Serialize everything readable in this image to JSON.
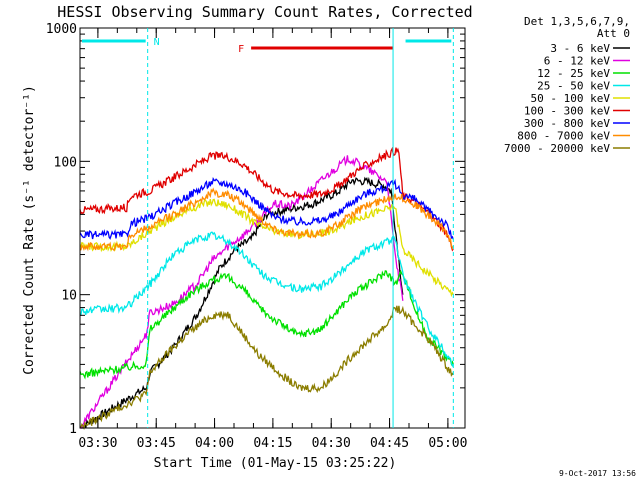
{
  "chart_data": {
    "type": "line",
    "title": "HESSI Observing Summary Count Rates, Corrected",
    "xlabel": "Start Time (01-May-15 03:25:22)",
    "ylabel": "Corrected Count Rate (s⁻¹ detector⁻¹)",
    "yscale": "log",
    "ylim": [
      1,
      1000
    ],
    "xlim_minutes": [
      0,
      99
    ],
    "yticks": [
      {
        "value": 1,
        "label": "1"
      },
      {
        "value": 10,
        "label": "10"
      },
      {
        "value": 100,
        "label": "100"
      },
      {
        "value": 1000,
        "label": "1000"
      }
    ],
    "xticks": [
      {
        "minute": 4.6,
        "label": "03:30"
      },
      {
        "minute": 19.6,
        "label": "03:45"
      },
      {
        "minute": 34.6,
        "label": "04:00"
      },
      {
        "minute": 49.6,
        "label": "04:15"
      },
      {
        "minute": 64.6,
        "label": "04:30"
      },
      {
        "minute": 79.6,
        "label": "04:45"
      },
      {
        "minute": 94.6,
        "label": "05:00"
      }
    ],
    "legend_header": [
      "Det 1,3,5,6,7,9,",
      "Att 0"
    ],
    "legend_position": "top-right, outside plot",
    "series": [
      {
        "name": "3 - 6 keV",
        "color": "#000000",
        "points": [
          [
            0,
            1.0
          ],
          [
            17,
            2.0
          ],
          [
            18,
            2.6
          ],
          [
            24,
            4.0
          ],
          [
            30,
            7.0
          ],
          [
            36,
            16.0
          ],
          [
            40,
            22.0
          ],
          [
            44,
            26.0
          ],
          [
            48,
            40.0
          ],
          [
            54,
            44.0
          ],
          [
            60,
            48.0
          ],
          [
            66,
            58.0
          ],
          [
            70,
            72.0
          ],
          [
            74,
            70.0
          ],
          [
            78,
            66.0
          ],
          [
            80,
            60.0
          ],
          [
            83,
            10.0
          ]
        ]
      },
      {
        "name": "6 - 12 keV",
        "color": "#e000e0",
        "points": [
          [
            0,
            1.0
          ],
          [
            17,
            5.0
          ],
          [
            18,
            7.3
          ],
          [
            24,
            8.5
          ],
          [
            30,
            12.0
          ],
          [
            34,
            18.0
          ],
          [
            38,
            23.0
          ],
          [
            42,
            28.0
          ],
          [
            46,
            36.0
          ],
          [
            50,
            48.0
          ],
          [
            54,
            46.0
          ],
          [
            58,
            56.0
          ],
          [
            62,
            72.0
          ],
          [
            66,
            90.0
          ],
          [
            69,
            105.0
          ],
          [
            72,
            95.0
          ],
          [
            76,
            80.0
          ],
          [
            79,
            70.0
          ],
          [
            81,
            20.0
          ],
          [
            83,
            9.0
          ]
        ]
      },
      {
        "name": "12 - 25 keV",
        "color": "#00e000",
        "points": [
          [
            0,
            2.5
          ],
          [
            17,
            3.0
          ],
          [
            18,
            5.5
          ],
          [
            22,
            7.0
          ],
          [
            28,
            10.0
          ],
          [
            34,
            13.0
          ],
          [
            38,
            13.5
          ],
          [
            42,
            11.0
          ],
          [
            46,
            8.0
          ],
          [
            50,
            6.5
          ],
          [
            56,
            5.0
          ],
          [
            62,
            5.5
          ],
          [
            66,
            7.5
          ],
          [
            70,
            10.0
          ],
          [
            75,
            12.5
          ],
          [
            79,
            15.0
          ],
          [
            81,
            12.0
          ],
          [
            83,
            15.0
          ],
          [
            86,
            8.0
          ],
          [
            89,
            5.0
          ],
          [
            92,
            4.0
          ],
          [
            96,
            3.0
          ]
        ]
      },
      {
        "name": "25 - 50 keV",
        "color": "#00e8e8",
        "points": [
          [
            0,
            7.5
          ],
          [
            12,
            8.0
          ],
          [
            18,
            12.0
          ],
          [
            24,
            20.0
          ],
          [
            30,
            26.0
          ],
          [
            34,
            28.0
          ],
          [
            38,
            25.0
          ],
          [
            42,
            20.0
          ],
          [
            46,
            15.0
          ],
          [
            50,
            12.5
          ],
          [
            56,
            11.0
          ],
          [
            62,
            11.5
          ],
          [
            66,
            14.0
          ],
          [
            70,
            18.0
          ],
          [
            74,
            22.0
          ],
          [
            79,
            25.0
          ],
          [
            81,
            26.0
          ],
          [
            83,
            14.0
          ],
          [
            86,
            9.0
          ],
          [
            89,
            6.0
          ],
          [
            92,
            4.5
          ],
          [
            96,
            3.0
          ]
        ]
      },
      {
        "name": "50 - 100 keV",
        "color": "#e0e000",
        "points": [
          [
            0,
            23.0
          ],
          [
            12,
            23.0
          ],
          [
            18,
            30.0
          ],
          [
            24,
            38.0
          ],
          [
            30,
            46.0
          ],
          [
            34,
            50.0
          ],
          [
            38,
            47.0
          ],
          [
            42,
            40.0
          ],
          [
            46,
            33.0
          ],
          [
            50,
            30.0
          ],
          [
            56,
            28.0
          ],
          [
            62,
            29.0
          ],
          [
            66,
            31.0
          ],
          [
            70,
            36.0
          ],
          [
            74,
            40.0
          ],
          [
            79,
            44.0
          ],
          [
            81,
            46.0
          ],
          [
            83,
            22.0
          ],
          [
            86,
            18.0
          ],
          [
            90,
            14.0
          ],
          [
            96,
            10.0
          ]
        ]
      },
      {
        "name": "100 - 300 keV",
        "color": "#e00000",
        "points": [
          [
            0,
            43.0
          ],
          [
            12,
            45.0
          ],
          [
            13,
            55.0
          ],
          [
            18,
            60.0
          ],
          [
            24,
            75.0
          ],
          [
            30,
            95.0
          ],
          [
            34,
            110.0
          ],
          [
            38,
            108.0
          ],
          [
            42,
            95.0
          ],
          [
            46,
            75.0
          ],
          [
            50,
            60.0
          ],
          [
            56,
            55.0
          ],
          [
            62,
            57.0
          ],
          [
            66,
            64.0
          ],
          [
            70,
            80.0
          ],
          [
            74,
            95.0
          ],
          [
            79,
            112.0
          ],
          [
            81,
            120.0
          ],
          [
            82,
            118.0
          ],
          [
            83,
            55.0
          ],
          [
            86,
            50.0
          ],
          [
            90,
            40.0
          ],
          [
            94,
            30.0
          ],
          [
            96,
            22.0
          ]
        ]
      },
      {
        "name": "300 - 800 keV",
        "color": "#0000ff",
        "points": [
          [
            0,
            28.0
          ],
          [
            12,
            28.0
          ],
          [
            13,
            34.0
          ],
          [
            18,
            38.0
          ],
          [
            24,
            48.0
          ],
          [
            30,
            60.0
          ],
          [
            34,
            70.0
          ],
          [
            38,
            68.0
          ],
          [
            42,
            60.0
          ],
          [
            46,
            48.0
          ],
          [
            50,
            38.0
          ],
          [
            56,
            35.0
          ],
          [
            62,
            36.0
          ],
          [
            66,
            40.0
          ],
          [
            70,
            50.0
          ],
          [
            74,
            58.0
          ],
          [
            79,
            64.0
          ],
          [
            81,
            68.0
          ],
          [
            83,
            56.0
          ],
          [
            86,
            52.0
          ],
          [
            90,
            42.0
          ],
          [
            94,
            34.0
          ],
          [
            96,
            26.0
          ]
        ]
      },
      {
        "name": "800 - 7000 keV",
        "color": "#ff8c00",
        "points": [
          [
            0,
            23.0
          ],
          [
            12,
            23.0
          ],
          [
            13,
            28.0
          ],
          [
            18,
            32.0
          ],
          [
            24,
            40.0
          ],
          [
            30,
            50.0
          ],
          [
            34,
            58.0
          ],
          [
            38,
            56.0
          ],
          [
            42,
            48.0
          ],
          [
            46,
            38.0
          ],
          [
            50,
            31.0
          ],
          [
            56,
            28.0
          ],
          [
            62,
            29.0
          ],
          [
            66,
            33.0
          ],
          [
            70,
            40.0
          ],
          [
            74,
            47.0
          ],
          [
            79,
            52.0
          ],
          [
            81,
            56.0
          ],
          [
            83,
            53.0
          ],
          [
            86,
            48.0
          ],
          [
            90,
            38.0
          ],
          [
            94,
            30.0
          ],
          [
            96,
            23.0
          ]
        ]
      },
      {
        "name": "7000 - 20000 keV",
        "color": "#8b7d00",
        "points": [
          [
            0,
            1.0
          ],
          [
            17,
            1.8
          ],
          [
            18,
            2.6
          ],
          [
            22,
            3.5
          ],
          [
            28,
            5.2
          ],
          [
            34,
            7.0
          ],
          [
            38,
            7.2
          ],
          [
            42,
            5.0
          ],
          [
            46,
            3.5
          ],
          [
            50,
            2.8
          ],
          [
            56,
            2.0
          ],
          [
            62,
            2.0
          ],
          [
            66,
            2.6
          ],
          [
            70,
            3.5
          ],
          [
            74,
            4.5
          ],
          [
            79,
            6.0
          ],
          [
            81,
            8.0
          ],
          [
            83,
            7.5
          ],
          [
            86,
            6.0
          ],
          [
            90,
            4.5
          ],
          [
            94,
            3.0
          ],
          [
            96,
            2.5
          ]
        ]
      }
    ],
    "annotations": [
      {
        "label": "N",
        "color": "#00e8e8"
      },
      {
        "label": "F",
        "color": "#e00000"
      }
    ],
    "intervals": {
      "night": [
        [
          0,
          17.4
        ],
        [
          83.2,
          96
        ]
      ],
      "flare": [
        [
          44,
          80.5
        ]
      ],
      "saa_lines_minutes": [
        17.4,
        80.5,
        96
      ]
    },
    "footer_date": "9-Oct-2017 13:56"
  }
}
